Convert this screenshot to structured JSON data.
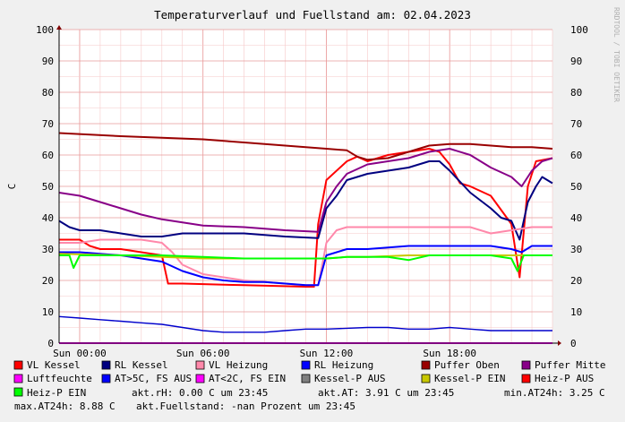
{
  "chart_data": {
    "type": "line",
    "title": "Temperaturverlauf und Fuellstand am: 02.04.2023",
    "ylabel": "C",
    "side_text": "RRDTOOL / TOBI OETIKER",
    "ylim": [
      0,
      100
    ],
    "xlim": [
      -1,
      23
    ],
    "y_ticks": [
      0,
      10,
      20,
      30,
      40,
      50,
      60,
      70,
      80,
      90,
      100
    ],
    "x_ticks": [
      {
        "x": 0,
        "label": "Sun 00:00"
      },
      {
        "x": 6,
        "label": "Sun 06:00"
      },
      {
        "x": 12,
        "label": "Sun 12:00"
      },
      {
        "x": 18,
        "label": "Sun 18:00"
      }
    ],
    "grid": true,
    "legend_position": "bottom",
    "series": [
      {
        "name": "VL Kessel",
        "color": "#ff0000",
        "points": [
          [
            -1,
            33
          ],
          [
            0,
            33
          ],
          [
            0.5,
            31
          ],
          [
            1,
            30
          ],
          [
            2,
            30
          ],
          [
            3,
            29
          ],
          [
            4,
            28
          ],
          [
            4.3,
            19
          ],
          [
            5,
            19
          ],
          [
            8,
            18.5
          ],
          [
            11,
            18
          ],
          [
            11.4,
            18
          ],
          [
            11.6,
            38
          ],
          [
            12,
            52
          ],
          [
            13,
            58
          ],
          [
            13.5,
            59.5
          ],
          [
            14,
            58
          ],
          [
            15,
            60
          ],
          [
            16,
            61
          ],
          [
            17,
            62
          ],
          [
            17.5,
            61
          ],
          [
            18,
            57
          ],
          [
            18.5,
            51
          ],
          [
            19,
            50
          ],
          [
            20,
            47
          ],
          [
            21,
            38
          ],
          [
            21.4,
            21
          ],
          [
            21.8,
            50
          ],
          [
            22.2,
            58
          ],
          [
            23,
            59
          ]
        ]
      },
      {
        "name": "RL Kessel",
        "color": "#000080",
        "points": [
          [
            -1,
            39
          ],
          [
            -0.5,
            37
          ],
          [
            0,
            36
          ],
          [
            1,
            36
          ],
          [
            2,
            35
          ],
          [
            3,
            34
          ],
          [
            4,
            34
          ],
          [
            5,
            35
          ],
          [
            8,
            35
          ],
          [
            10,
            34
          ],
          [
            11.6,
            33.5
          ],
          [
            12,
            43
          ],
          [
            12.5,
            47
          ],
          [
            13,
            52
          ],
          [
            14,
            54
          ],
          [
            15,
            55
          ],
          [
            16,
            56
          ],
          [
            17,
            58
          ],
          [
            17.5,
            58
          ],
          [
            18,
            55
          ],
          [
            19,
            48
          ],
          [
            20,
            43
          ],
          [
            20.5,
            40
          ],
          [
            21,
            39
          ],
          [
            21.4,
            33
          ],
          [
            21.8,
            45
          ],
          [
            22.2,
            50
          ],
          [
            22.5,
            53
          ],
          [
            23,
            51
          ]
        ]
      },
      {
        "name": "VL Heizung",
        "color": "#ff88aa",
        "points": [
          [
            -1,
            32
          ],
          [
            0,
            32
          ],
          [
            1,
            33
          ],
          [
            2,
            33
          ],
          [
            3,
            33
          ],
          [
            4,
            32
          ],
          [
            4.5,
            29
          ],
          [
            5,
            25
          ],
          [
            6,
            22
          ],
          [
            7,
            21
          ],
          [
            8,
            20
          ],
          [
            9,
            19.5
          ],
          [
            10,
            19
          ],
          [
            11,
            18.5
          ],
          [
            11.6,
            18.5
          ],
          [
            11.8,
            25
          ],
          [
            12,
            32
          ],
          [
            12.5,
            36
          ],
          [
            13,
            37
          ],
          [
            14,
            37
          ],
          [
            15,
            37
          ],
          [
            16,
            37
          ],
          [
            17,
            37
          ],
          [
            18,
            37
          ],
          [
            19,
            37
          ],
          [
            20,
            35
          ],
          [
            21,
            36
          ],
          [
            22,
            37
          ],
          [
            23,
            37
          ]
        ]
      },
      {
        "name": "RL Heizung",
        "color": "#0000ff",
        "points": [
          [
            -1,
            29
          ],
          [
            0,
            29
          ],
          [
            2,
            28
          ],
          [
            3,
            27
          ],
          [
            4,
            26
          ],
          [
            5,
            23
          ],
          [
            6,
            21
          ],
          [
            7,
            20
          ],
          [
            8,
            19.5
          ],
          [
            9,
            19.5
          ],
          [
            10,
            19
          ],
          [
            11,
            18.5
          ],
          [
            11.6,
            18.5
          ],
          [
            12,
            28
          ],
          [
            13,
            30
          ],
          [
            14,
            30
          ],
          [
            16,
            31
          ],
          [
            18,
            31
          ],
          [
            20,
            31
          ],
          [
            21,
            30
          ],
          [
            21.5,
            29
          ],
          [
            22,
            31
          ],
          [
            23,
            31
          ]
        ]
      },
      {
        "name": "Puffer Oben",
        "color": "#990000",
        "points": [
          [
            -1,
            67
          ],
          [
            2,
            66
          ],
          [
            4,
            65.5
          ],
          [
            6,
            65
          ],
          [
            8,
            64
          ],
          [
            10,
            63
          ],
          [
            12,
            62
          ],
          [
            13,
            61.5
          ],
          [
            13.5,
            59.5
          ],
          [
            14,
            58.5
          ],
          [
            15,
            59
          ],
          [
            16,
            61
          ],
          [
            17,
            63
          ],
          [
            18,
            63.5
          ],
          [
            19,
            63.5
          ],
          [
            20,
            63
          ],
          [
            21,
            62.5
          ],
          [
            22,
            62.5
          ],
          [
            23,
            62
          ]
        ]
      },
      {
        "name": "Puffer Mitte",
        "color": "#880088",
        "points": [
          [
            -1,
            48
          ],
          [
            0,
            47
          ],
          [
            1,
            45
          ],
          [
            2,
            43
          ],
          [
            3,
            41
          ],
          [
            4,
            39.5
          ],
          [
            5,
            38.5
          ],
          [
            6,
            37.5
          ],
          [
            8,
            37
          ],
          [
            10,
            36
          ],
          [
            11.6,
            35.5
          ],
          [
            12,
            45
          ],
          [
            12.5,
            50
          ],
          [
            13,
            54
          ],
          [
            14,
            57
          ],
          [
            15,
            58
          ],
          [
            16,
            59
          ],
          [
            17,
            61
          ],
          [
            18,
            62
          ],
          [
            19,
            60
          ],
          [
            20,
            56
          ],
          [
            21,
            53
          ],
          [
            21.5,
            50
          ],
          [
            22,
            55
          ],
          [
            22.5,
            58
          ],
          [
            23,
            59
          ]
        ]
      },
      {
        "name": "Luftfeuchte",
        "color": "#ff00ff",
        "points": [
          [
            -1,
            0
          ],
          [
            23,
            0
          ]
        ]
      },
      {
        "name": "AT>5C, FS AUS",
        "color": "#0000ff",
        "points": []
      },
      {
        "name": "AT<2C, FS EIN",
        "color": "#ff00ff",
        "points": []
      },
      {
        "name": "Kessel-P AUS",
        "color": "#808080",
        "points": []
      },
      {
        "name": "Kessel-P EIN",
        "color": "#c8c800",
        "points": [
          [
            -1,
            28.5
          ],
          [
            2,
            28
          ],
          [
            4,
            27.5
          ],
          [
            6,
            27
          ],
          [
            8,
            27
          ],
          [
            10,
            27
          ],
          [
            12,
            27
          ],
          [
            13,
            27.5
          ],
          [
            14,
            27.5
          ],
          [
            16,
            28
          ],
          [
            18,
            28
          ],
          [
            20,
            28
          ],
          [
            22,
            28
          ],
          [
            23,
            28
          ]
        ]
      },
      {
        "name": "Heiz-P AUS",
        "color": "#ff0000",
        "points": []
      },
      {
        "name": "Heiz-P EIN",
        "color": "#00ff00",
        "points": [
          [
            -1,
            28
          ],
          [
            -0.5,
            28
          ],
          [
            -0.3,
            24
          ],
          [
            0,
            28
          ],
          [
            1,
            28
          ],
          [
            2,
            28
          ],
          [
            4,
            28
          ],
          [
            6,
            27.5
          ],
          [
            8,
            27
          ],
          [
            10,
            27
          ],
          [
            12,
            27
          ],
          [
            13,
            27.5
          ],
          [
            14,
            27.5
          ],
          [
            15,
            27.5
          ],
          [
            16,
            26.5
          ],
          [
            17,
            28
          ],
          [
            18,
            28
          ],
          [
            20,
            28
          ],
          [
            21,
            27
          ],
          [
            21.3,
            23
          ],
          [
            21.6,
            28
          ],
          [
            22,
            28
          ],
          [
            23,
            28
          ]
        ]
      },
      {
        "name": "",
        "color": "#0000cc",
        "line_width": 1.4,
        "points": [
          [
            -1,
            8.5
          ],
          [
            0,
            8
          ],
          [
            1,
            7.5
          ],
          [
            2,
            7
          ],
          [
            3,
            6.5
          ],
          [
            4,
            6
          ],
          [
            5,
            5
          ],
          [
            6,
            4
          ],
          [
            7,
            3.5
          ],
          [
            8,
            3.5
          ],
          [
            9,
            3.5
          ],
          [
            10,
            4
          ],
          [
            11,
            4.5
          ],
          [
            12,
            4.5
          ],
          [
            14,
            5
          ],
          [
            15,
            5
          ],
          [
            16,
            4.5
          ],
          [
            17,
            4.5
          ],
          [
            18,
            5
          ],
          [
            19,
            4.5
          ],
          [
            20,
            4
          ],
          [
            21,
            4
          ],
          [
            23,
            4
          ]
        ]
      }
    ]
  },
  "legend_rows": [
    [
      {
        "label": "VL Kessel",
        "color": "#ff0000"
      },
      {
        "label": "RL Kessel",
        "color": "#000080"
      },
      {
        "label": "VL Heizung",
        "color": "#ff88aa"
      },
      {
        "label": "RL Heizung",
        "color": "#0000ff"
      },
      {
        "label": "Puffer Oben",
        "color": "#990000"
      },
      {
        "label": "Puffer Mitte",
        "color": "#880088"
      }
    ],
    [
      {
        "label": "Luftfeuchte",
        "color": "#ff00ff"
      },
      {
        "label": "AT>5C, FS AUS",
        "color": "#0000ff"
      },
      {
        "label": "AT<2C, FS EIN",
        "color": "#ff00ff"
      },
      {
        "label": "Kessel-P AUS",
        "color": "#808080"
      },
      {
        "label": "Kessel-P EIN",
        "color": "#c8c800"
      },
      {
        "label": "Heiz-P AUS",
        "color": "#ff0000"
      }
    ]
  ],
  "status_row3": {
    "legend_label": "Heiz-P EIN",
    "legend_color": "#00ff00",
    "rh": "akt.rH: 0.00 C um 23:45",
    "at": "akt.AT: 3.91 C um 23:45",
    "min_at": "min.AT24h: 3.25 C"
  },
  "status_row4": {
    "max_at": "max.AT24h: 8.88 C",
    "fuell": "akt.Fuellstand: -nan Prozent um 23:45"
  }
}
